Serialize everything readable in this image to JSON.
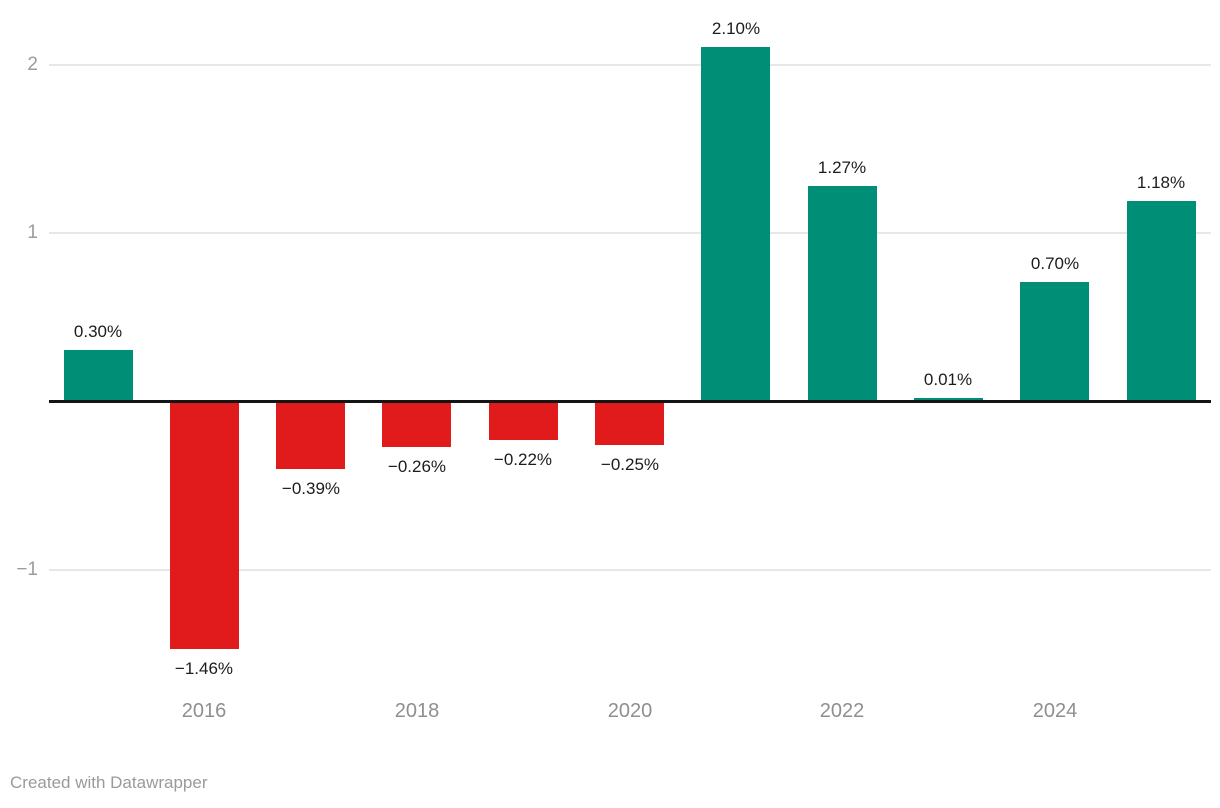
{
  "chart_data": {
    "type": "bar",
    "x": [
      "2015",
      "2016",
      "2017",
      "2018",
      "2019",
      "2020",
      "2021",
      "2022",
      "2023",
      "2024",
      "2025"
    ],
    "values": [
      0.3,
      -1.46,
      -0.39,
      -0.26,
      -0.22,
      -0.25,
      2.1,
      1.27,
      0.01,
      0.7,
      1.18
    ],
    "value_labels": [
      "0.30%",
      "−1.46%",
      "−0.39%",
      "−0.26%",
      "−0.22%",
      "−0.25%",
      "2.10%",
      "1.27%",
      "0.01%",
      "0.70%",
      "1.18%"
    ],
    "y_ticks": [
      {
        "value": 2,
        "label": "2"
      },
      {
        "value": 1,
        "label": "1"
      },
      {
        "value": -1,
        "label": "−1"
      }
    ],
    "x_ticks": [
      {
        "index": 1,
        "label": "2016"
      },
      {
        "index": 3,
        "label": "2018"
      },
      {
        "index": 5,
        "label": "2020"
      },
      {
        "index": 7,
        "label": "2022"
      },
      {
        "index": 9,
        "label": "2024"
      }
    ],
    "ylim": [
      -1.65,
      2.35
    ],
    "grid": true,
    "legend": "none",
    "title": "",
    "xlabel": "",
    "ylabel": "",
    "colors": {
      "positive": "#008f76",
      "negative": "#e11a1c"
    }
  },
  "footer": {
    "credit": "Created with Datawrapper"
  }
}
